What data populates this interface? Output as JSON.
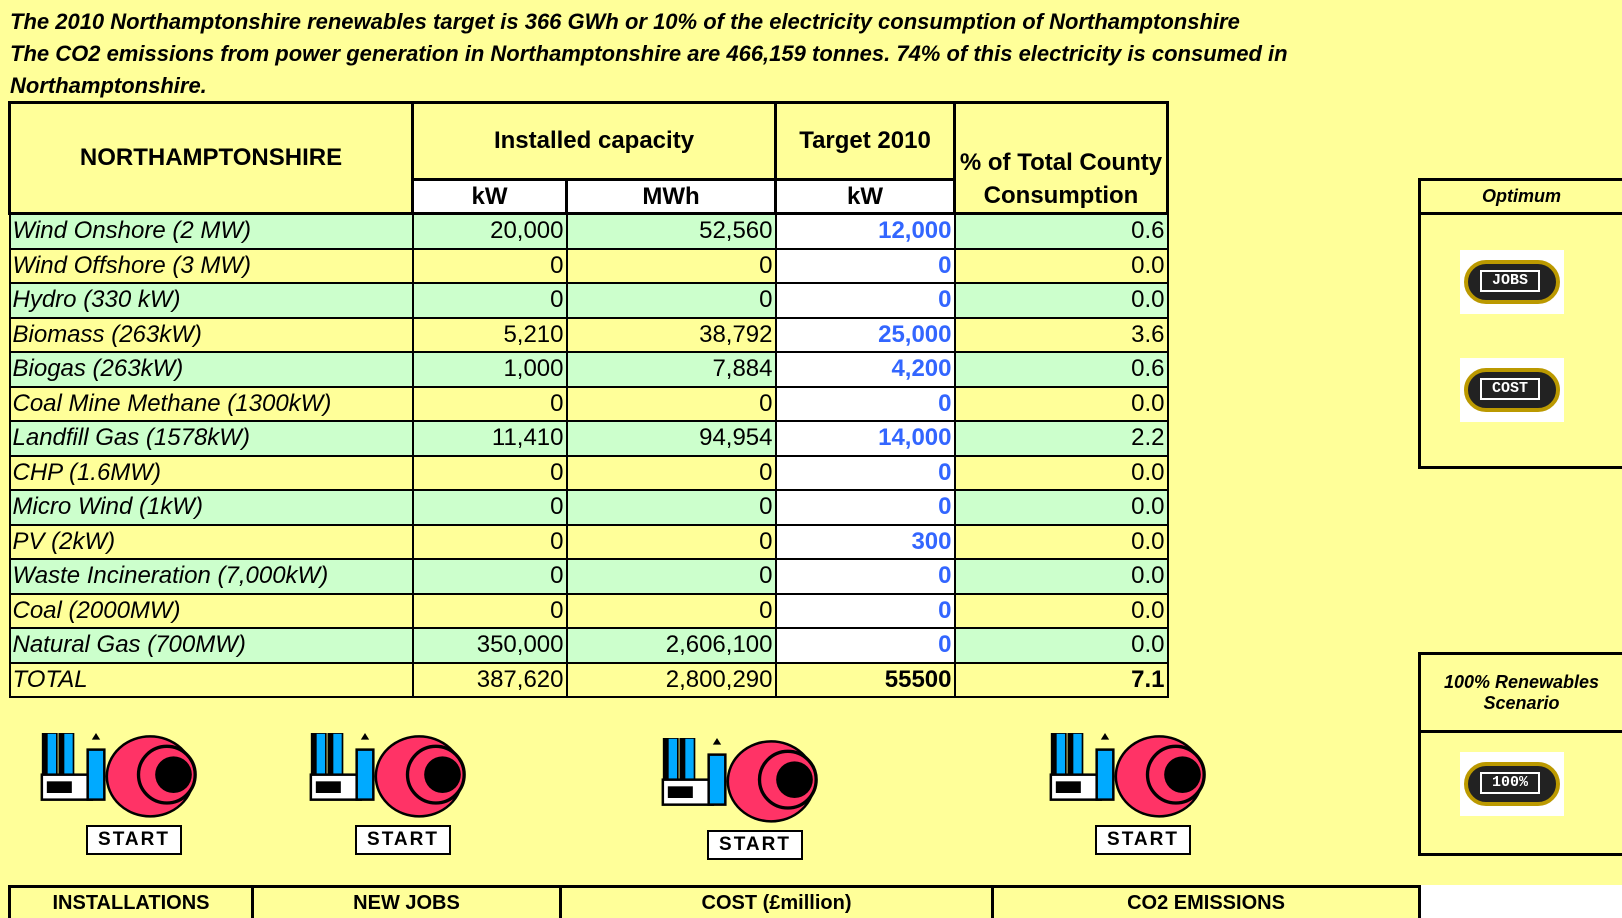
{
  "header": {
    "lines": [
      "The 2010 Northamptonshire renewables target is 366 GWh or 10% of the electricity consumption of Northamptonshire",
      "The CO2 emissions from power generation in Northamptonshire are 466,159 tonnes. 74% of  this electricity is consumed in Northamptonshire."
    ]
  },
  "table": {
    "title": "NORTHAMPTONSHIRE",
    "group_headers": [
      "Installed capacity",
      "Target 2010",
      "% of Total County Consumption"
    ],
    "unit_headers": [
      "kW",
      "MWh",
      "kW"
    ],
    "rows": [
      [
        "Wind Onshore (2 MW)",
        "20,000",
        "52,560",
        "12,000",
        "0.6"
      ],
      [
        "Wind Offshore (3 MW)",
        "0",
        "0",
        "0",
        "0.0"
      ],
      [
        "Hydro (330 kW)",
        "0",
        "0",
        "0",
        "0.0"
      ],
      [
        "Biomass (263kW)",
        "5,210",
        "38,792",
        "25,000",
        "3.6"
      ],
      [
        "Biogas (263kW)",
        "1,000",
        "7,884",
        "4,200",
        "0.6"
      ],
      [
        "Coal Mine Methane (1300kW)",
        "0",
        "0",
        "0",
        "0.0"
      ],
      [
        "Landfill Gas (1578kW)",
        "11,410",
        "94,954",
        "14,000",
        "2.2"
      ],
      [
        "CHP (1.6MW)",
        "0",
        "0",
        "0",
        "0.0"
      ],
      [
        "Micro Wind (1kW)",
        "0",
        "0",
        "0",
        "0.0"
      ],
      [
        "PV (2kW)",
        "0",
        "0",
        "300",
        "0.0"
      ],
      [
        "Waste Incineration (7,000kW)",
        "0",
        "0",
        "0",
        "0.0"
      ],
      [
        "Coal (2000MW)",
        "0",
        "0",
        "0",
        "0.0"
      ],
      [
        "Natural Gas (700MW)",
        "350,000",
        "2,606,100",
        "0",
        "0.0"
      ]
    ],
    "total": [
      "TOTAL",
      "387,620",
      "2,800,290",
      "55500",
      "7.1"
    ]
  },
  "side": {
    "optimum": {
      "title": "Optimum",
      "buttons": [
        "JOBS",
        "COST"
      ]
    },
    "scenario": {
      "title": "100% Renewables Scenario",
      "buttons": [
        "100%"
      ]
    }
  },
  "start_buttons": [
    "START",
    "START",
    "START",
    "START"
  ],
  "footer": [
    "INSTALLATIONS",
    "NEW JOBS",
    "COST (£million)",
    "CO2 EMISSIONS"
  ]
}
